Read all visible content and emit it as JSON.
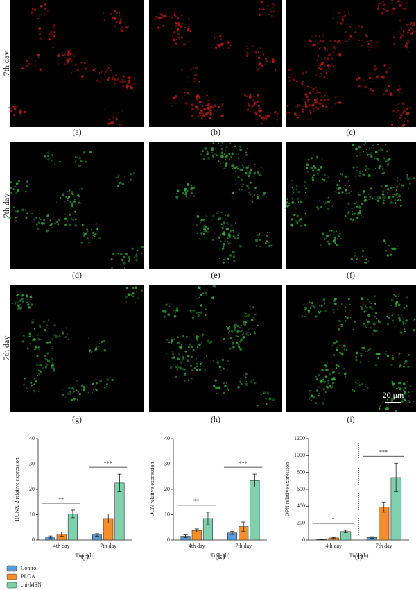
{
  "row_labels": [
    "7th day",
    "7th day",
    "7th day"
  ],
  "panel_labels": [
    "(a)",
    "(b)",
    "(c)",
    "(d)",
    "(e)",
    "(f)",
    "(g)",
    "(h)",
    "(i)",
    "(j)",
    "(k)",
    "(l)"
  ],
  "scale_bar": "20 μm",
  "chart_data": [
    {
      "type": "bar",
      "ylabel": "RUNX-2 relative expression",
      "xlabel": "Time (h)",
      "categories": [
        "4th day",
        "7th day"
      ],
      "series": [
        {
          "name": "Control",
          "color": "#5b9bd5",
          "values": [
            1.2,
            2.0
          ],
          "errors": [
            0.4,
            0.5
          ]
        },
        {
          "name": "PLGA",
          "color": "#f28e2b",
          "values": [
            2.3,
            8.5
          ],
          "errors": [
            0.8,
            1.8
          ]
        },
        {
          "name": "chi-MSN",
          "color": "#7fd1ae",
          "values": [
            10.3,
            22.5
          ],
          "errors": [
            1.5,
            3.5
          ]
        }
      ],
      "annotations": [
        "**",
        "***"
      ],
      "ylim": [
        0,
        40
      ],
      "yticks": [
        0,
        10,
        20,
        30,
        40
      ]
    },
    {
      "type": "bar",
      "ylabel": "OCN relative expression",
      "xlabel": "Time (h)",
      "categories": [
        "4th day",
        "7th day"
      ],
      "series": [
        {
          "name": "Control",
          "color": "#5b9bd5",
          "values": [
            1.5,
            2.8
          ],
          "errors": [
            0.5,
            0.6
          ]
        },
        {
          "name": "PLGA",
          "color": "#f28e2b",
          "values": [
            3.8,
            5.3
          ],
          "errors": [
            0.6,
            1.8
          ]
        },
        {
          "name": "chi-MSN",
          "color": "#7fd1ae",
          "values": [
            8.5,
            23.5
          ],
          "errors": [
            2.5,
            2.5
          ]
        }
      ],
      "annotations": [
        "**",
        "***"
      ],
      "ylim": [
        0,
        40
      ],
      "yticks": [
        0,
        10,
        20,
        30,
        40
      ]
    },
    {
      "type": "bar",
      "ylabel": "OPN relative expression",
      "xlabel": "Time (h)",
      "categories": [
        "4th day",
        "7th day"
      ],
      "series": [
        {
          "name": "Control",
          "color": "#5b9bd5",
          "values": [
            5,
            30
          ],
          "errors": [
            3,
            10
          ]
        },
        {
          "name": "PLGA",
          "color": "#f28e2b",
          "values": [
            25,
            390
          ],
          "errors": [
            8,
            60
          ]
        },
        {
          "name": "chi-MSN",
          "color": "#7fd1ae",
          "values": [
            100,
            740
          ],
          "errors": [
            15,
            170
          ]
        }
      ],
      "annotations": [
        "*",
        "***"
      ],
      "ylim": [
        0,
        1200
      ],
      "yticks": [
        0,
        200,
        400,
        600,
        800,
        1000,
        1200
      ]
    }
  ]
}
